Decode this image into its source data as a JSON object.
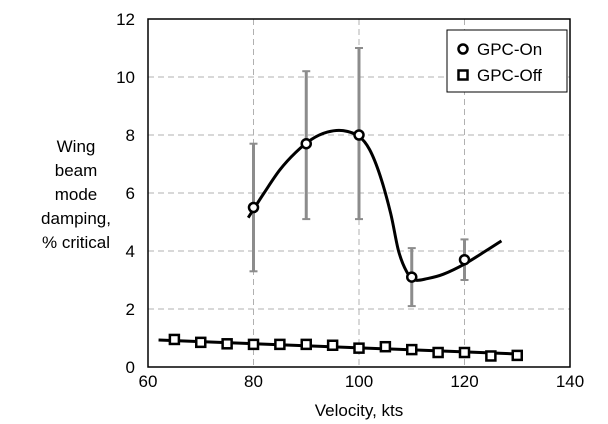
{
  "chart_data": {
    "type": "scatter",
    "xlabel": "Velocity, kts",
    "ylabel_lines": [
      "Wing",
      "beam",
      "mode",
      "damping,",
      "% critical"
    ],
    "xlim": [
      60,
      140
    ],
    "ylim": [
      0,
      12
    ],
    "xticks": [
      60,
      80,
      100,
      120,
      140
    ],
    "yticks": [
      0,
      2,
      4,
      6,
      8,
      10,
      12
    ],
    "grid": true,
    "grid_style": "dashed",
    "legend_position": "top-right",
    "series": [
      {
        "name": "GPC-On",
        "marker": "circle",
        "points": [
          {
            "x": 80,
            "y": 5.5,
            "err_low": 3.3,
            "err_high": 7.7
          },
          {
            "x": 90,
            "y": 7.7,
            "err_low": 5.1,
            "err_high": 10.2
          },
          {
            "x": 100,
            "y": 8.0,
            "err_low": 5.1,
            "err_high": 11.0
          },
          {
            "x": 110,
            "y": 3.1,
            "err_low": 2.1,
            "err_high": 4.1
          },
          {
            "x": 120,
            "y": 3.7,
            "err_low": 3.0,
            "err_high": 4.4
          }
        ],
        "fit_curve": [
          [
            79,
            5.15
          ],
          [
            82,
            6.0
          ],
          [
            85,
            6.8
          ],
          [
            88,
            7.4
          ],
          [
            91,
            7.85
          ],
          [
            94,
            8.1
          ],
          [
            97,
            8.15
          ],
          [
            100,
            7.95
          ],
          [
            102,
            7.5
          ],
          [
            104,
            6.6
          ],
          [
            106,
            5.3
          ],
          [
            107.5,
            4.0
          ],
          [
            109,
            3.3
          ],
          [
            110.5,
            3.0
          ],
          [
            113,
            3.05
          ],
          [
            116,
            3.2
          ],
          [
            120,
            3.55
          ],
          [
            124,
            4.0
          ],
          [
            127,
            4.35
          ]
        ]
      },
      {
        "name": "GPC-Off",
        "marker": "square",
        "points": [
          {
            "x": 65,
            "y": 0.95
          },
          {
            "x": 70,
            "y": 0.85
          },
          {
            "x": 75,
            "y": 0.8
          },
          {
            "x": 80,
            "y": 0.78
          },
          {
            "x": 85,
            "y": 0.78
          },
          {
            "x": 90,
            "y": 0.78
          },
          {
            "x": 95,
            "y": 0.75
          },
          {
            "x": 100,
            "y": 0.65
          },
          {
            "x": 105,
            "y": 0.7
          },
          {
            "x": 110,
            "y": 0.6
          },
          {
            "x": 115,
            "y": 0.5
          },
          {
            "x": 120,
            "y": 0.5
          },
          {
            "x": 125,
            "y": 0.38
          },
          {
            "x": 130,
            "y": 0.4
          }
        ],
        "fit_curve": [
          [
            62,
            0.93
          ],
          [
            130,
            0.45
          ]
        ]
      }
    ]
  }
}
